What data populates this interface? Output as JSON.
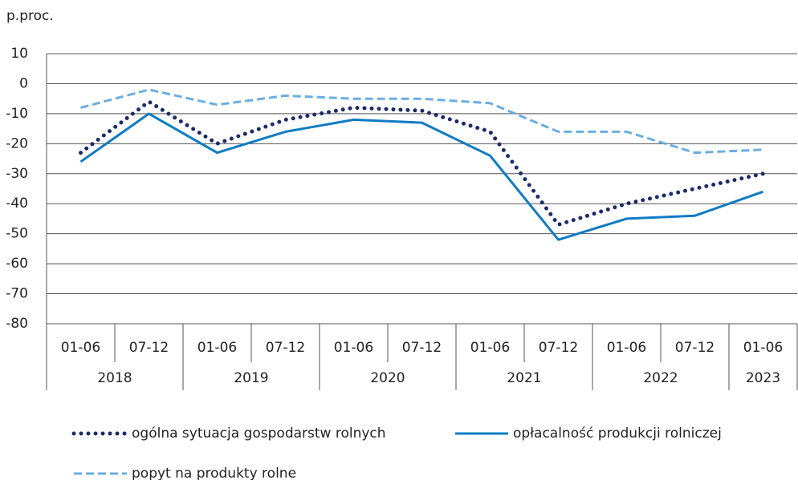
{
  "chart_data": {
    "type": "line",
    "y_label": "p.proc.",
    "categories": [
      "01-06",
      "07-12",
      "01-06",
      "07-12",
      "01-06",
      "07-12",
      "01-06",
      "07-12",
      "01-06",
      "07-12",
      "01-06"
    ],
    "years": [
      "2018",
      "2018",
      "2019",
      "2019",
      "2020",
      "2020",
      "2021",
      "2021",
      "2022",
      "2022",
      "2023"
    ],
    "series": [
      {
        "name": "ogólna sytuacja gospodarstw rolnych",
        "color": "#1b2a6b",
        "style": "dotted",
        "values": [
          -23,
          -6,
          -20,
          -12,
          -8,
          -9,
          -16,
          -47,
          -40,
          -35,
          -30
        ]
      },
      {
        "name": "opłacalność produkcji rolniczej",
        "color": "#0f7cc4",
        "style": "solid",
        "values": [
          -26,
          -10,
          -23,
          -16,
          -12,
          -13,
          -24,
          -52,
          -45,
          -44,
          -36
        ]
      },
      {
        "name": "popyt na produkty rolne",
        "color": "#6aaee2",
        "style": "dashed",
        "values": [
          -8,
          -2,
          -7,
          -4,
          -5,
          -5,
          -6.5,
          -16,
          -16,
          -23,
          -22
        ]
      }
    ],
    "ylim": [
      -80,
      10
    ],
    "yticks": [
      10,
      0,
      -10,
      -20,
      -30,
      -40,
      -50,
      -60,
      -70,
      -80
    ],
    "grid": true
  }
}
